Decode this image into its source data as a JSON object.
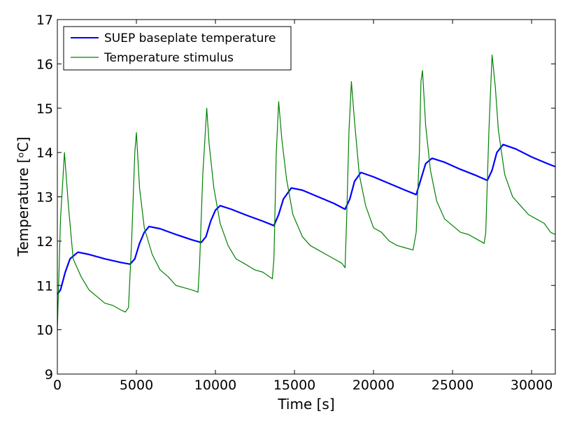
{
  "chart_data": {
    "type": "line",
    "xlabel": "Time [s]",
    "ylabel": "Temperature [ᵒC]",
    "xlim": [
      0,
      31500
    ],
    "ylim": [
      9,
      17
    ],
    "xticks": [
      0,
      5000,
      10000,
      15000,
      20000,
      25000,
      30000
    ],
    "yticks": [
      9,
      10,
      11,
      12,
      13,
      14,
      15,
      16,
      17
    ],
    "legend": "upper left",
    "series": [
      {
        "name": "SUEP baseplate temperature",
        "color": "#0000ff",
        "x": [
          0,
          200,
          500,
          800,
          1300,
          2000,
          3000,
          4000,
          4600,
          4900,
          5200,
          5500,
          5800,
          6500,
          7500,
          8500,
          9100,
          9400,
          9700,
          10000,
          10300,
          11000,
          12000,
          13000,
          13700,
          14000,
          14300,
          14800,
          15500,
          16500,
          17500,
          18200,
          18500,
          18800,
          19200,
          20000,
          21000,
          22000,
          22700,
          23000,
          23300,
          23700,
          24500,
          25500,
          26500,
          27200,
          27500,
          27800,
          28200,
          29000,
          30000,
          31000,
          31500
        ],
        "values": [
          10.8,
          10.9,
          11.3,
          11.6,
          11.75,
          11.7,
          11.6,
          11.52,
          11.48,
          11.6,
          11.95,
          12.2,
          12.33,
          12.28,
          12.15,
          12.03,
          11.97,
          12.1,
          12.45,
          12.7,
          12.8,
          12.72,
          12.58,
          12.45,
          12.35,
          12.6,
          12.95,
          13.2,
          13.15,
          13.0,
          12.85,
          12.72,
          12.95,
          13.35,
          13.55,
          13.45,
          13.3,
          13.15,
          13.05,
          13.4,
          13.75,
          13.87,
          13.78,
          13.62,
          13.48,
          13.37,
          13.6,
          14.0,
          14.18,
          14.08,
          13.9,
          13.75,
          13.68
        ]
      },
      {
        "name": "Temperature stimulus",
        "color": "#008000",
        "x": [
          0,
          200,
          450,
          700,
          1000,
          1500,
          2000,
          2500,
          3000,
          3500,
          4000,
          4300,
          4500,
          4700,
          4900,
          5000,
          5200,
          5500,
          6000,
          6500,
          7000,
          7500,
          8000,
          8500,
          8900,
          9000,
          9200,
          9450,
          9600,
          9900,
          10300,
          10800,
          11300,
          11800,
          12500,
          13000,
          13400,
          13600,
          13700,
          13850,
          14000,
          14200,
          14500,
          14900,
          15500,
          16000,
          16500,
          17000,
          17500,
          18000,
          18200,
          18300,
          18450,
          18600,
          18800,
          19100,
          19500,
          20000,
          20500,
          21000,
          21500,
          22000,
          22500,
          22700,
          22900,
          23000,
          23100,
          23300,
          23600,
          24000,
          24500,
          25000,
          25500,
          26000,
          26500,
          27000,
          27100,
          27300,
          27500,
          27700,
          27900,
          28300,
          28800,
          29300,
          29800,
          30300,
          30800,
          31200,
          31500
        ],
        "values": [
          10.0,
          12.5,
          14.0,
          12.8,
          11.6,
          11.2,
          10.9,
          10.75,
          10.6,
          10.55,
          10.45,
          10.4,
          10.5,
          12.0,
          14.0,
          14.45,
          13.2,
          12.3,
          11.7,
          11.35,
          11.2,
          11.0,
          10.95,
          10.9,
          10.85,
          11.5,
          13.5,
          15.0,
          14.2,
          13.2,
          12.4,
          11.9,
          11.6,
          11.5,
          11.35,
          11.3,
          11.2,
          11.15,
          11.6,
          14.0,
          15.15,
          14.3,
          13.4,
          12.6,
          12.1,
          11.9,
          11.8,
          11.7,
          11.6,
          11.5,
          11.4,
          12.5,
          14.5,
          15.6,
          14.7,
          13.5,
          12.8,
          12.3,
          12.2,
          12.0,
          11.9,
          11.85,
          11.8,
          12.2,
          14.0,
          15.6,
          15.85,
          14.6,
          13.6,
          12.9,
          12.5,
          12.35,
          12.2,
          12.15,
          12.05,
          11.95,
          12.2,
          14.5,
          16.2,
          15.5,
          14.5,
          13.5,
          13.0,
          12.8,
          12.6,
          12.5,
          12.4,
          12.2,
          12.15
        ]
      }
    ]
  }
}
